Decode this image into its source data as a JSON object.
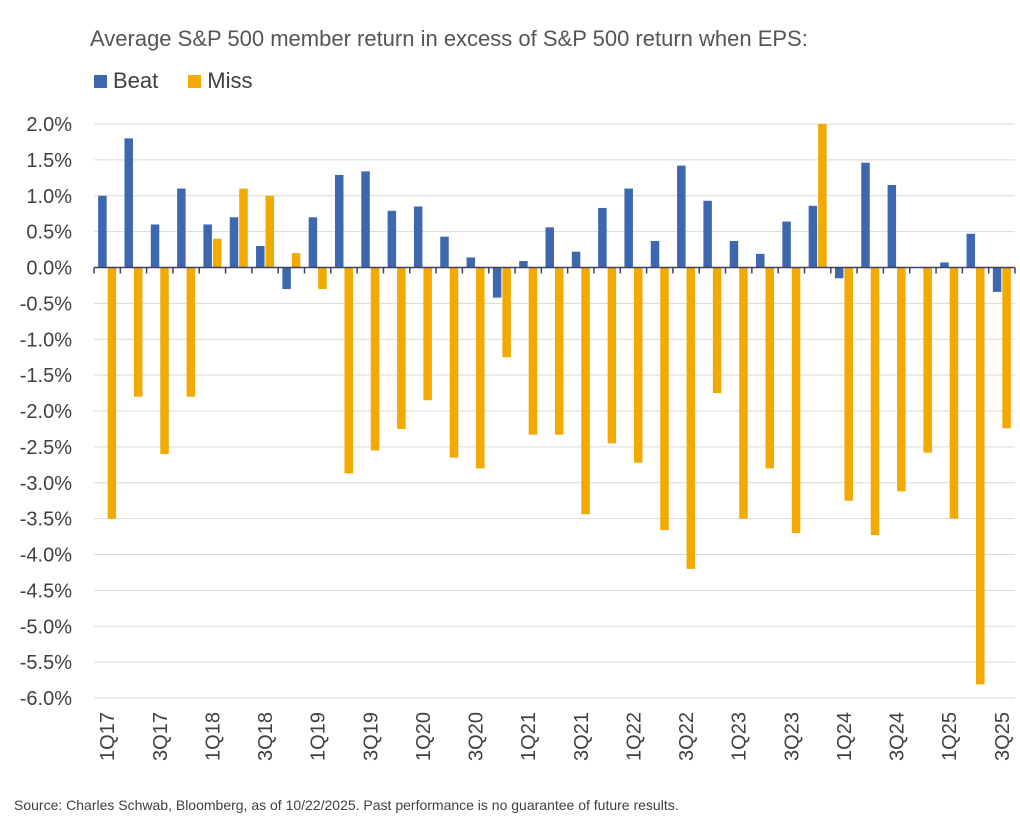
{
  "chart_data": {
    "type": "bar",
    "title": "Average S&P 500 member return in excess of S&P 500 return when EPS:",
    "xlabel": "",
    "ylabel": "",
    "ylim": [
      -6.0,
      2.0
    ],
    "ytick_step": 0.5,
    "legend_position": "top-left",
    "grid": true,
    "categories": [
      "1Q17",
      "2Q17",
      "3Q17",
      "4Q17",
      "1Q18",
      "2Q18",
      "3Q18",
      "4Q18",
      "1Q19",
      "2Q19",
      "3Q19",
      "4Q19",
      "1Q20",
      "2Q20",
      "3Q20",
      "4Q20",
      "1Q21",
      "2Q21",
      "3Q21",
      "4Q21",
      "1Q22",
      "2Q22",
      "3Q22",
      "4Q22",
      "1Q23",
      "2Q23",
      "3Q23",
      "4Q23",
      "1Q24",
      "2Q24",
      "3Q24",
      "4Q24",
      "1Q25",
      "2Q25",
      "3Q25"
    ],
    "visible_tick_labels": [
      "1Q17",
      "3Q17",
      "1Q18",
      "3Q18",
      "1Q19",
      "3Q19",
      "1Q20",
      "3Q20",
      "1Q21",
      "3Q21",
      "1Q22",
      "3Q22",
      "1Q23",
      "3Q23",
      "1Q24",
      "3Q24",
      "1Q25",
      "3Q25"
    ],
    "series": [
      {
        "name": "Beat",
        "color": "#3d68b0",
        "values": [
          1.0,
          1.8,
          0.6,
          1.1,
          0.6,
          0.7,
          0.3,
          -0.3,
          0.7,
          1.29,
          1.34,
          0.79,
          0.85,
          0.43,
          0.14,
          -0.42,
          0.09,
          0.56,
          0.22,
          0.83,
          1.1,
          0.37,
          1.42,
          0.93,
          0.37,
          0.19,
          0.64,
          0.86,
          -0.15,
          1.46,
          1.15,
          0.0,
          0.07,
          0.47,
          -0.34
        ]
      },
      {
        "name": "Miss",
        "color": "#f2a900",
        "values": [
          -3.5,
          -1.8,
          -2.6,
          -1.8,
          0.4,
          1.1,
          1.0,
          0.2,
          -0.3,
          -2.87,
          -2.55,
          -2.25,
          -1.85,
          -2.65,
          -2.8,
          -1.25,
          -2.33,
          -2.33,
          -3.44,
          -2.45,
          -2.72,
          -3.66,
          -4.2,
          -1.75,
          -3.5,
          -2.8,
          -3.7,
          2.0,
          -3.25,
          -3.73,
          -3.12,
          -2.58,
          -3.5,
          -5.81,
          -2.24
        ]
      }
    ]
  },
  "source": "Source: Charles Schwab, Bloomberg, as of 10/22/2025.  Past performance is no guarantee of future results."
}
